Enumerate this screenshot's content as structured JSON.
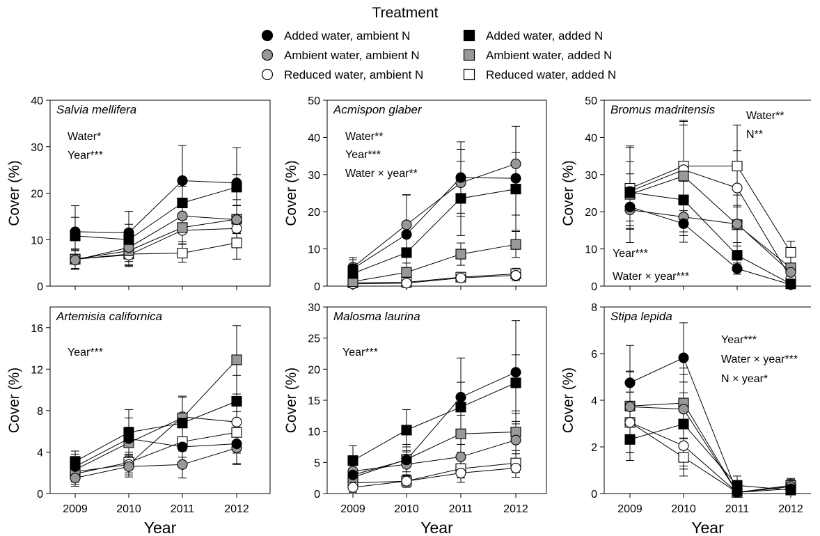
{
  "legend": {
    "title": "Treatment",
    "entries": [
      {
        "key": "AW_aN",
        "label": "Added water, ambient N",
        "shape": "circle",
        "fill": "#000000"
      },
      {
        "key": "AW_AN",
        "label": "Added water, added N",
        "shape": "square",
        "fill": "#000000"
      },
      {
        "key": "aW_aN",
        "label": "Ambient water, ambient N",
        "shape": "circle",
        "fill": "#999999"
      },
      {
        "key": "aW_AN",
        "label": "Ambient water, added N",
        "shape": "square",
        "fill": "#999999"
      },
      {
        "key": "RW_aN",
        "label": "Reduced water, ambient N",
        "shape": "circle",
        "fill": "#ffffff"
      },
      {
        "key": "RW_AN",
        "label": "Reduced water, added N",
        "shape": "square",
        "fill": "#ffffff"
      }
    ]
  },
  "chart_data": [
    {
      "type": "line",
      "title": "Salvia mellifera",
      "ylabel": "Cover (%)",
      "xlabel": "",
      "x": [
        2009,
        2010,
        2011,
        2012
      ],
      "ylim": [
        0,
        40
      ],
      "yticks": [
        0,
        10,
        20,
        30,
        40
      ],
      "annotations": [
        "Water*",
        "Year***"
      ],
      "series": [
        {
          "key": "AW_aN",
          "values": [
            11.7,
            11.5,
            22.7,
            22.2
          ],
          "err": [
            5.6,
            4.6,
            7.6,
            7.6
          ]
        },
        {
          "key": "AW_AN",
          "values": [
            10.8,
            10.0,
            17.9,
            21.3
          ],
          "err": [
            4.0,
            3.3,
            3.6,
            2.7
          ]
        },
        {
          "key": "aW_aN",
          "values": [
            5.6,
            8.3,
            15.1,
            14.3
          ],
          "err": [
            2.0,
            3.0,
            3.5,
            3.0
          ]
        },
        {
          "key": "aW_AN",
          "values": [
            5.8,
            7.6,
            12.6,
            14.4
          ],
          "err": [
            2.2,
            3.0,
            3.0,
            3.0
          ]
        },
        {
          "key": "RW_aN",
          "values": [
            5.8,
            6.7,
            12.0,
            12.4
          ],
          "err": [
            2.0,
            2.5,
            3.0,
            3.0
          ]
        },
        {
          "key": "RW_AN",
          "values": [
            5.8,
            6.9,
            7.1,
            9.3
          ],
          "err": [
            2.0,
            2.5,
            2.0,
            3.5
          ]
        }
      ]
    },
    {
      "type": "line",
      "title": "Acmispon glaber",
      "ylabel": "Cover (%)",
      "xlabel": "",
      "x": [
        2009,
        2010,
        2011,
        2012
      ],
      "ylim": [
        0,
        50
      ],
      "yticks": [
        0,
        10,
        20,
        30,
        40,
        50
      ],
      "annotations": [
        "Water**",
        "Year***",
        "Water × year**"
      ],
      "series": [
        {
          "key": "AW_aN",
          "values": [
            4.7,
            13.9,
            29.2,
            29.0
          ],
          "err": [
            3.0,
            10.7,
            9.6,
            14.0
          ]
        },
        {
          "key": "AW_AN",
          "values": [
            3.4,
            9.0,
            23.6,
            26.1
          ],
          "err": [
            2.5,
            5.0,
            10.0,
            7.0
          ]
        },
        {
          "key": "aW_aN",
          "values": [
            5.1,
            16.5,
            27.8,
            32.9
          ],
          "err": [
            2.0,
            8.0,
            9.0,
            3.0
          ]
        },
        {
          "key": "aW_AN",
          "values": [
            1.2,
            3.7,
            8.6,
            11.2
          ],
          "err": [
            1.0,
            2.5,
            3.0,
            3.5
          ]
        },
        {
          "key": "RW_aN",
          "values": [
            0.6,
            0.8,
            2.2,
            2.9
          ],
          "err": [
            0.5,
            0.8,
            1.0,
            1.5
          ]
        },
        {
          "key": "RW_AN",
          "values": [
            0.9,
            1.0,
            2.4,
            3.3
          ],
          "err": [
            0.5,
            0.8,
            1.0,
            1.5
          ]
        }
      ]
    },
    {
      "type": "line",
      "title": "Bromus madritensis",
      "ylabel": "Cover (%)",
      "xlabel": "",
      "x": [
        2009,
        2010,
        2011,
        2012
      ],
      "ylim": [
        0,
        50
      ],
      "yticks": [
        0,
        10,
        20,
        30,
        40,
        50
      ],
      "annotations": [
        "Water**",
        "N**",
        "Year***",
        "Water × year***"
      ],
      "series": [
        {
          "key": "AW_aN",
          "values": [
            21.3,
            16.8,
            4.7,
            0.4
          ],
          "err": [
            5.0,
            5.0,
            1.5,
            0.5
          ]
        },
        {
          "key": "AW_AN",
          "values": [
            25.2,
            23.2,
            8.3,
            0.6
          ],
          "err": [
            5.0,
            5.0,
            2.5,
            0.5
          ]
        },
        {
          "key": "aW_aN",
          "values": [
            20.5,
            18.6,
            16.7,
            3.7
          ],
          "err": [
            5.0,
            5.0,
            5.0,
            2.0
          ]
        },
        {
          "key": "aW_AN",
          "values": [
            24.7,
            29.6,
            16.5,
            4.9
          ],
          "err": [
            13.0,
            15.0,
            8.0,
            3.0
          ]
        },
        {
          "key": "RW_aN",
          "values": [
            25.5,
            31.3,
            26.4,
            2.1
          ],
          "err": [
            8.0,
            12.0,
            10.0,
            1.5
          ]
        },
        {
          "key": "RW_AN",
          "values": [
            26.3,
            32.3,
            32.3,
            9.1
          ],
          "err": [
            11.0,
            12.0,
            11.0,
            3.0
          ]
        }
      ]
    },
    {
      "type": "line",
      "title": "Artemisia californica",
      "ylabel": "Cover (%)",
      "xlabel": "Year",
      "x": [
        2009,
        2010,
        2011,
        2012
      ],
      "ylim": [
        0,
        18
      ],
      "yticks": [
        0,
        4,
        8,
        12,
        16
      ],
      "annotations": [
        "Year***"
      ],
      "series": [
        {
          "key": "AW_aN",
          "values": [
            2.6,
            5.3,
            4.5,
            4.8
          ],
          "err": [
            1.2,
            2.0,
            2.0,
            2.0
          ]
        },
        {
          "key": "AW_AN",
          "values": [
            3.1,
            5.9,
            6.8,
            8.9
          ],
          "err": [
            1.0,
            2.2,
            2.5,
            2.5
          ]
        },
        {
          "key": "aW_aN",
          "values": [
            1.5,
            2.6,
            2.8,
            4.4
          ],
          "err": [
            0.8,
            1.0,
            1.3,
            1.5
          ]
        },
        {
          "key": "aW_AN",
          "values": [
            2.3,
            4.9,
            7.3,
            12.9
          ],
          "err": [
            1.0,
            1.5,
            2.0,
            3.3
          ]
        },
        {
          "key": "RW_aN",
          "values": [
            2.1,
            2.8,
            7.4,
            6.9
          ],
          "err": [
            1.0,
            1.0,
            2.0,
            2.0
          ]
        },
        {
          "key": "RW_AN",
          "values": [
            1.9,
            3.0,
            5.0,
            5.9
          ],
          "err": [
            1.0,
            1.0,
            1.5,
            2.0
          ]
        }
      ]
    },
    {
      "type": "line",
      "title": "Malosma laurina",
      "ylabel": "Cover (%)",
      "xlabel": "Year",
      "x": [
        2009,
        2010,
        2011,
        2012
      ],
      "ylim": [
        0,
        30
      ],
      "yticks": [
        0,
        5,
        10,
        15,
        20,
        25,
        30
      ],
      "annotations": [
        "Year***"
      ],
      "series": [
        {
          "key": "AW_aN",
          "values": [
            3.0,
            5.4,
            15.5,
            19.5
          ],
          "err": [
            1.5,
            2.5,
            6.3,
            8.3
          ]
        },
        {
          "key": "AW_AN",
          "values": [
            5.3,
            10.2,
            13.9,
            17.8
          ],
          "err": [
            2.4,
            3.3,
            4.0,
            4.5
          ]
        },
        {
          "key": "aW_aN",
          "values": [
            3.6,
            4.7,
            5.9,
            8.6
          ],
          "err": [
            1.5,
            2.0,
            2.0,
            3.0
          ]
        },
        {
          "key": "aW_AN",
          "values": [
            2.6,
            5.5,
            9.6,
            9.9
          ],
          "err": [
            1.5,
            2.0,
            3.0,
            3.0
          ]
        },
        {
          "key": "RW_aN",
          "values": [
            1.0,
            2.0,
            3.3,
            4.1
          ],
          "err": [
            0.8,
            1.0,
            1.5,
            1.5
          ]
        },
        {
          "key": "RW_AN",
          "values": [
            1.7,
            2.0,
            4.0,
            4.9
          ],
          "err": [
            0.8,
            1.0,
            1.5,
            1.5
          ]
        }
      ]
    },
    {
      "type": "line",
      "title": "Stipa lepida",
      "ylabel": "Cover (%)",
      "xlabel": "Year",
      "x": [
        2009,
        2010,
        2011,
        2012
      ],
      "ylim": [
        0,
        8
      ],
      "yticks": [
        0,
        2,
        4,
        6,
        8
      ],
      "annotations": [
        "Year***",
        "Water × year***",
        "N × year*"
      ],
      "series": [
        {
          "key": "AW_aN",
          "values": [
            4.75,
            5.82,
            0.05,
            0.2
          ],
          "err": [
            1.6,
            1.5,
            0.1,
            0.3
          ]
        },
        {
          "key": "AW_AN",
          "values": [
            2.32,
            2.98,
            0.35,
            0.15
          ],
          "err": [
            0.9,
            1.8,
            0.4,
            0.3
          ]
        },
        {
          "key": "aW_aN",
          "values": [
            3.72,
            3.62,
            0.05,
            0.3
          ],
          "err": [
            1.5,
            1.5,
            0.1,
            0.3
          ]
        },
        {
          "key": "aW_AN",
          "values": [
            3.75,
            3.88,
            0.05,
            0.35
          ],
          "err": [
            1.5,
            1.5,
            0.1,
            0.3
          ]
        },
        {
          "key": "RW_aN",
          "values": [
            3.05,
            2.05,
            0.05,
            0.3
          ],
          "err": [
            1.3,
            1.0,
            0.1,
            0.3
          ]
        },
        {
          "key": "RW_AN",
          "values": [
            3.05,
            1.55,
            0.05,
            0.3
          ],
          "err": [
            1.3,
            0.8,
            0.1,
            0.3
          ]
        }
      ]
    }
  ]
}
